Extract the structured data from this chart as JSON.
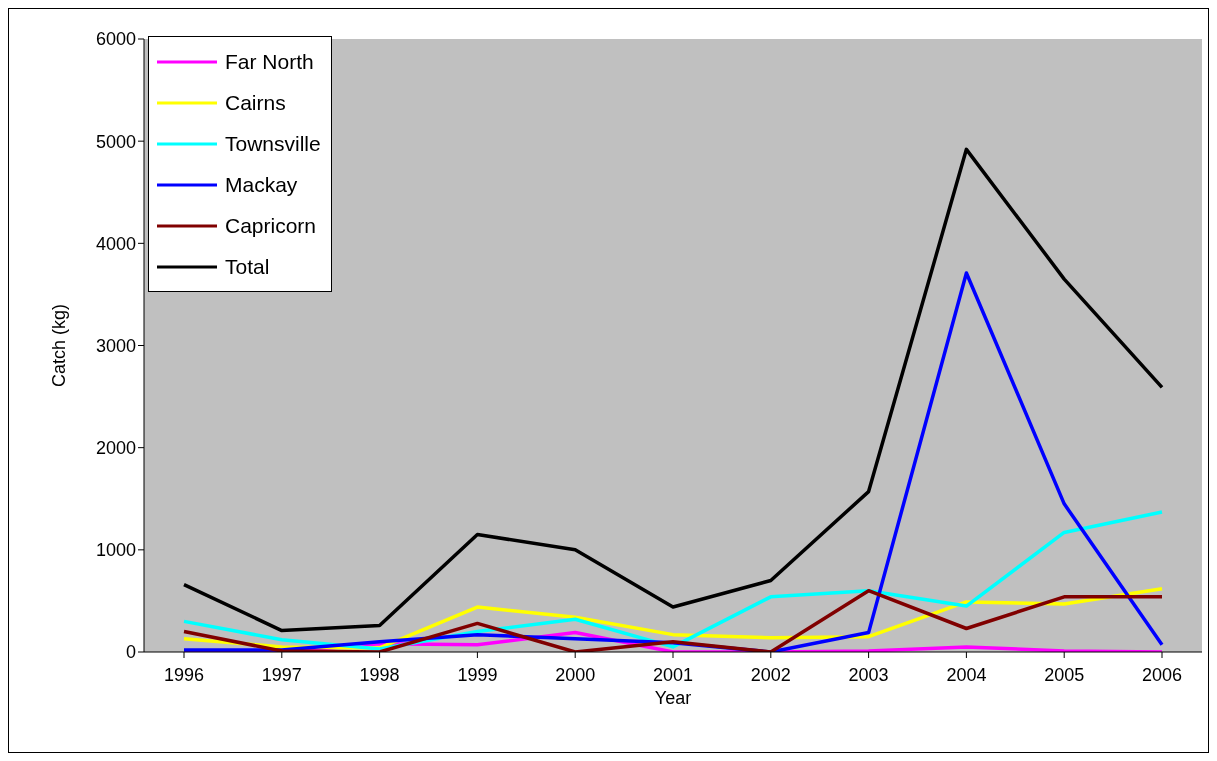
{
  "chart_data": {
    "type": "line",
    "xlabel": "Year",
    "ylabel": "Catch (kg)",
    "categories": [
      "1996",
      "1997",
      "1998",
      "1999",
      "2000",
      "2001",
      "2002",
      "2003",
      "2004",
      "2005",
      "2006"
    ],
    "series": [
      {
        "name": "Far North",
        "color": "#ff00ff",
        "values": [
          0,
          0,
          80,
          70,
          190,
          0,
          0,
          10,
          50,
          10,
          0
        ]
      },
      {
        "name": "Cairns",
        "color": "#ffff00",
        "values": [
          130,
          50,
          40,
          440,
          340,
          170,
          140,
          150,
          490,
          470,
          620
        ]
      },
      {
        "name": "Townsville",
        "color": "#00ffff",
        "values": [
          300,
          120,
          30,
          200,
          320,
          50,
          540,
          600,
          450,
          1170,
          1370
        ]
      },
      {
        "name": "Mackay",
        "color": "#0000ff",
        "values": [
          20,
          20,
          100,
          170,
          130,
          90,
          0,
          190,
          3710,
          1450,
          70
        ]
      },
      {
        "name": "Capricorn",
        "color": "#800000",
        "values": [
          200,
          10,
          0,
          280,
          0,
          100,
          0,
          600,
          230,
          540,
          540
        ]
      },
      {
        "name": "Total",
        "color": "#000000",
        "values": [
          660,
          210,
          260,
          1150,
          1000,
          440,
          700,
          1570,
          4920,
          3650,
          2590
        ]
      }
    ],
    "ylim": [
      0,
      6000
    ],
    "yticks": [
      0,
      1000,
      2000,
      3000,
      4000,
      5000,
      6000
    ],
    "grid": false,
    "legend": "top left",
    "marker": "none",
    "line_style": "solid"
  }
}
